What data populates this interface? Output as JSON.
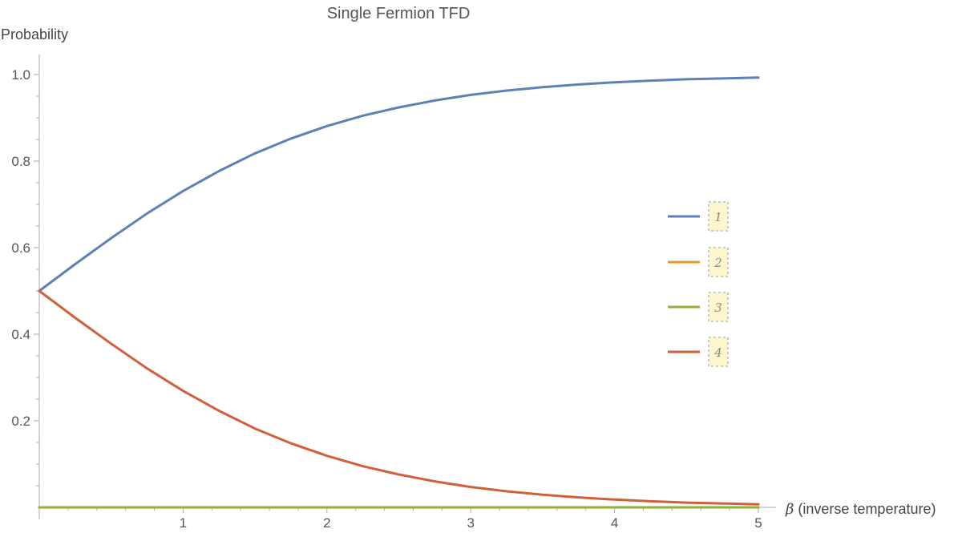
{
  "chart_data": {
    "type": "line",
    "title": "Single Fermion TFD",
    "xlabel_symbol": "β",
    "xlabel_text": " (inverse temperature)",
    "ylabel": "Probability",
    "xlim": [
      0,
      5
    ],
    "ylim": [
      0,
      1.05
    ],
    "xticks": [
      1,
      2,
      3,
      4,
      5
    ],
    "yticks": [
      0.2,
      0.4,
      0.6,
      0.8,
      1.0
    ],
    "ytick_labels": [
      "0.2",
      "0.4",
      "0.6",
      "0.8",
      "1.0"
    ],
    "xtick_labels": [
      "1",
      "2",
      "3",
      "4",
      "5"
    ],
    "grid": false,
    "legend_position": "right",
    "x": [
      0,
      0.25,
      0.5,
      0.75,
      1,
      1.25,
      1.5,
      1.75,
      2,
      2.25,
      2.5,
      2.75,
      3,
      3.25,
      3.5,
      3.75,
      4,
      4.25,
      4.5,
      4.75,
      5
    ],
    "series": [
      {
        "name": "1",
        "color": "#5e81b5",
        "values": [
          0.5,
          0.562,
          0.622,
          0.679,
          0.731,
          0.777,
          0.818,
          0.852,
          0.881,
          0.905,
          0.924,
          0.94,
          0.953,
          0.963,
          0.971,
          0.977,
          0.982,
          0.986,
          0.989,
          0.991,
          0.993
        ]
      },
      {
        "name": "2",
        "color": "#e19c24",
        "values": [
          0,
          0,
          0,
          0,
          0,
          0,
          0,
          0,
          0,
          0,
          0,
          0,
          0,
          0,
          0,
          0,
          0,
          0,
          0,
          0,
          0
        ]
      },
      {
        "name": "3",
        "color": "#8fb032",
        "values": [
          0,
          0,
          0,
          0,
          0,
          0,
          0,
          0,
          0,
          0,
          0,
          0,
          0,
          0,
          0,
          0,
          0,
          0,
          0,
          0,
          0
        ]
      },
      {
        "name": "4",
        "color": "#d0603a",
        "values": [
          0.5,
          0.438,
          0.378,
          0.321,
          0.269,
          0.223,
          0.182,
          0.148,
          0.119,
          0.095,
          0.076,
          0.06,
          0.047,
          0.037,
          0.029,
          0.023,
          0.018,
          0.014,
          0.011,
          0.009,
          0.007
        ]
      }
    ]
  }
}
